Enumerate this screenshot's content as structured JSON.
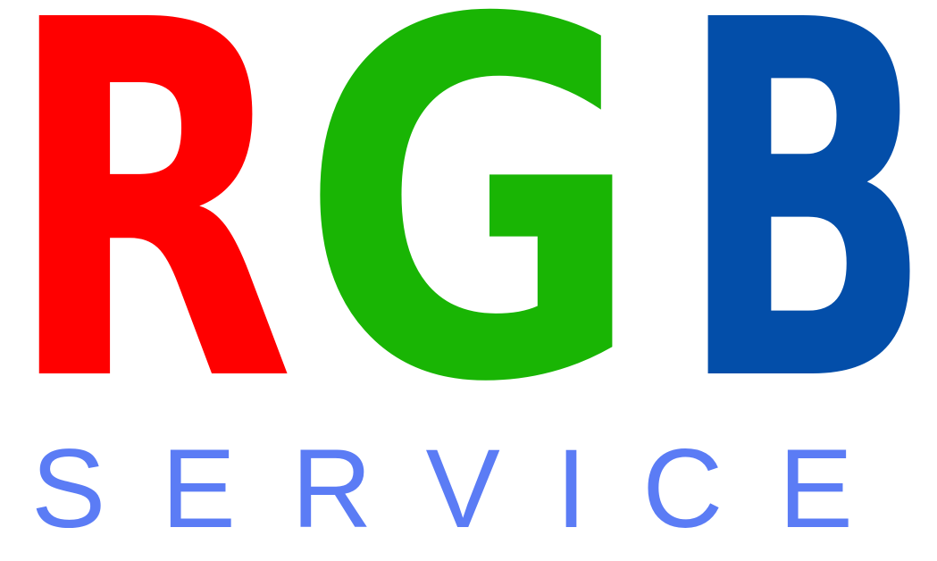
{
  "logo": {
    "letters": [
      {
        "text": "R",
        "color": "#ff0000"
      },
      {
        "text": "G",
        "color": "#19b504"
      },
      {
        "text": "B",
        "color": "#034ea9"
      }
    ],
    "tagline": {
      "text": "SERVICE",
      "color": "#5b7cf5"
    }
  }
}
